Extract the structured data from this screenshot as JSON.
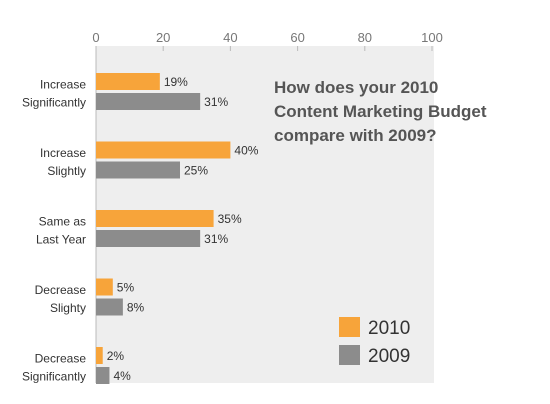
{
  "chart_data": {
    "type": "bar",
    "orientation": "horizontal",
    "title_lines": [
      "How does your 2010",
      "Content Marketing Budget",
      "compare with 2009?"
    ],
    "categories": [
      [
        "Increase",
        "Significantly"
      ],
      [
        "Increase",
        "Slightly"
      ],
      [
        "Same as",
        "Last Year"
      ],
      [
        "Decrease",
        "Slighty"
      ],
      [
        "Decrease",
        "Significantly"
      ]
    ],
    "series": [
      {
        "name": "2010",
        "color": "#F7A43A",
        "values": [
          19,
          40,
          35,
          5,
          2
        ]
      },
      {
        "name": "2009",
        "color": "#8C8C8C",
        "values": [
          31,
          25,
          31,
          8,
          4
        ]
      }
    ],
    "value_suffix": "%",
    "xlim": [
      0,
      100
    ],
    "xticks": [
      0,
      20,
      40,
      60,
      80,
      100
    ],
    "xaxis_position": "top",
    "grid": false,
    "legend_position": "bottom-right",
    "plot_background": "#EEEEEE"
  }
}
